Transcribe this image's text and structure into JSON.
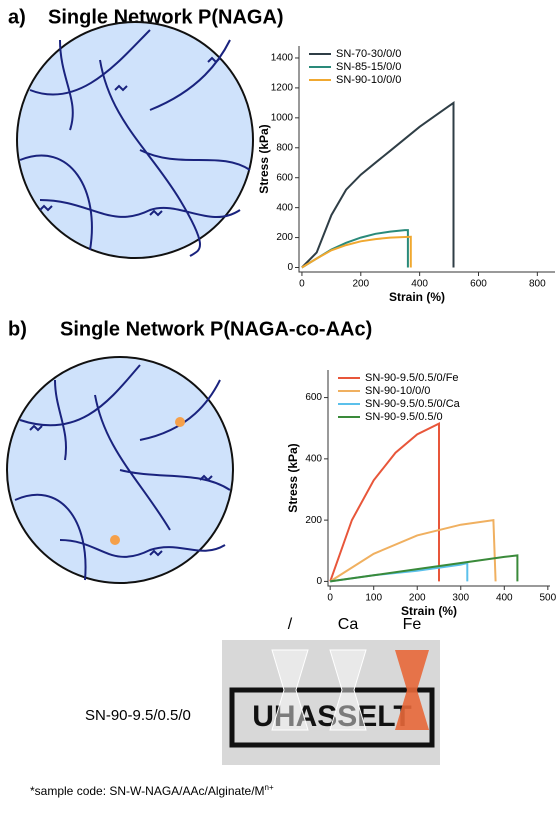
{
  "panels": [
    {
      "label": "a)",
      "title": "Single Network P(NAGA)"
    },
    {
      "label": "b)",
      "title": "Single Network P(NAGA-co-AAc)"
    }
  ],
  "chart_data": [
    {
      "type": "line",
      "xlabel": "Strain (%)",
      "ylabel": "Stress (kPa)",
      "xlim": [
        -10,
        860
      ],
      "ylim": [
        -30,
        1480
      ],
      "xticks": [
        0,
        200,
        400,
        600,
        800
      ],
      "yticks": [
        0,
        200,
        400,
        600,
        800,
        1000,
        1200,
        1400
      ],
      "legend": "upper left",
      "series": [
        {
          "name": "SN-70-30/0/0",
          "color": "#2f3e46",
          "x": [
            0,
            50,
            100,
            150,
            200,
            250,
            300,
            350,
            400,
            450,
            500,
            515,
            515
          ],
          "values": [
            0,
            100,
            350,
            520,
            620,
            700,
            780,
            860,
            940,
            1010,
            1080,
            1100,
            0
          ]
        },
        {
          "name": "SN-85-15/0/0",
          "color": "#2a8a7a",
          "x": [
            0,
            50,
            100,
            150,
            200,
            250,
            300,
            350,
            360,
            360
          ],
          "values": [
            0,
            60,
            120,
            165,
            200,
            225,
            240,
            250,
            250,
            0
          ]
        },
        {
          "name": "SN-90-10/0/0",
          "color": "#f0a830",
          "x": [
            0,
            50,
            100,
            150,
            200,
            250,
            300,
            370,
            370
          ],
          "values": [
            0,
            60,
            115,
            150,
            175,
            190,
            200,
            205,
            0
          ]
        }
      ]
    },
    {
      "type": "line",
      "xlabel": "Strain (%)",
      "ylabel": "Stress (kPa)",
      "xlim": [
        -5,
        505
      ],
      "ylim": [
        -15,
        690
      ],
      "xticks": [
        0,
        100,
        200,
        300,
        400,
        500
      ],
      "yticks": [
        0,
        200,
        400,
        600
      ],
      "legend": "upper left",
      "series": [
        {
          "name": "SN-90-9.5/0.5/0/Fe",
          "color": "#e8563a",
          "x": [
            0,
            50,
            100,
            150,
            200,
            250,
            250
          ],
          "values": [
            0,
            200,
            330,
            420,
            480,
            515,
            0
          ]
        },
        {
          "name": "SN-90-10/0/0",
          "color": "#f0b060",
          "x": [
            0,
            100,
            200,
            300,
            375,
            380
          ],
          "values": [
            0,
            90,
            150,
            185,
            200,
            0
          ]
        },
        {
          "name": "SN-90-9.5/0.5/0/Ca",
          "color": "#5bc0eb",
          "x": [
            0,
            100,
            200,
            300,
            315,
            315
          ],
          "values": [
            0,
            20,
            35,
            55,
            60,
            0
          ]
        },
        {
          "name": "SN-90-9.5/0.5/0",
          "color": "#3a8a3a",
          "x": [
            0,
            100,
            200,
            300,
            400,
            430,
            430
          ],
          "values": [
            0,
            20,
            40,
            60,
            80,
            85,
            0
          ]
        }
      ]
    }
  ],
  "photo": {
    "sample": "SN-90-9.5/0.5/0",
    "columns": [
      "/",
      "Ca",
      "Fe"
    ],
    "sign": "UHASSELT"
  },
  "footnote": "*sample code: SN-W-NAGA/AAc/Alginate/M",
  "footnote_sup": "n+"
}
